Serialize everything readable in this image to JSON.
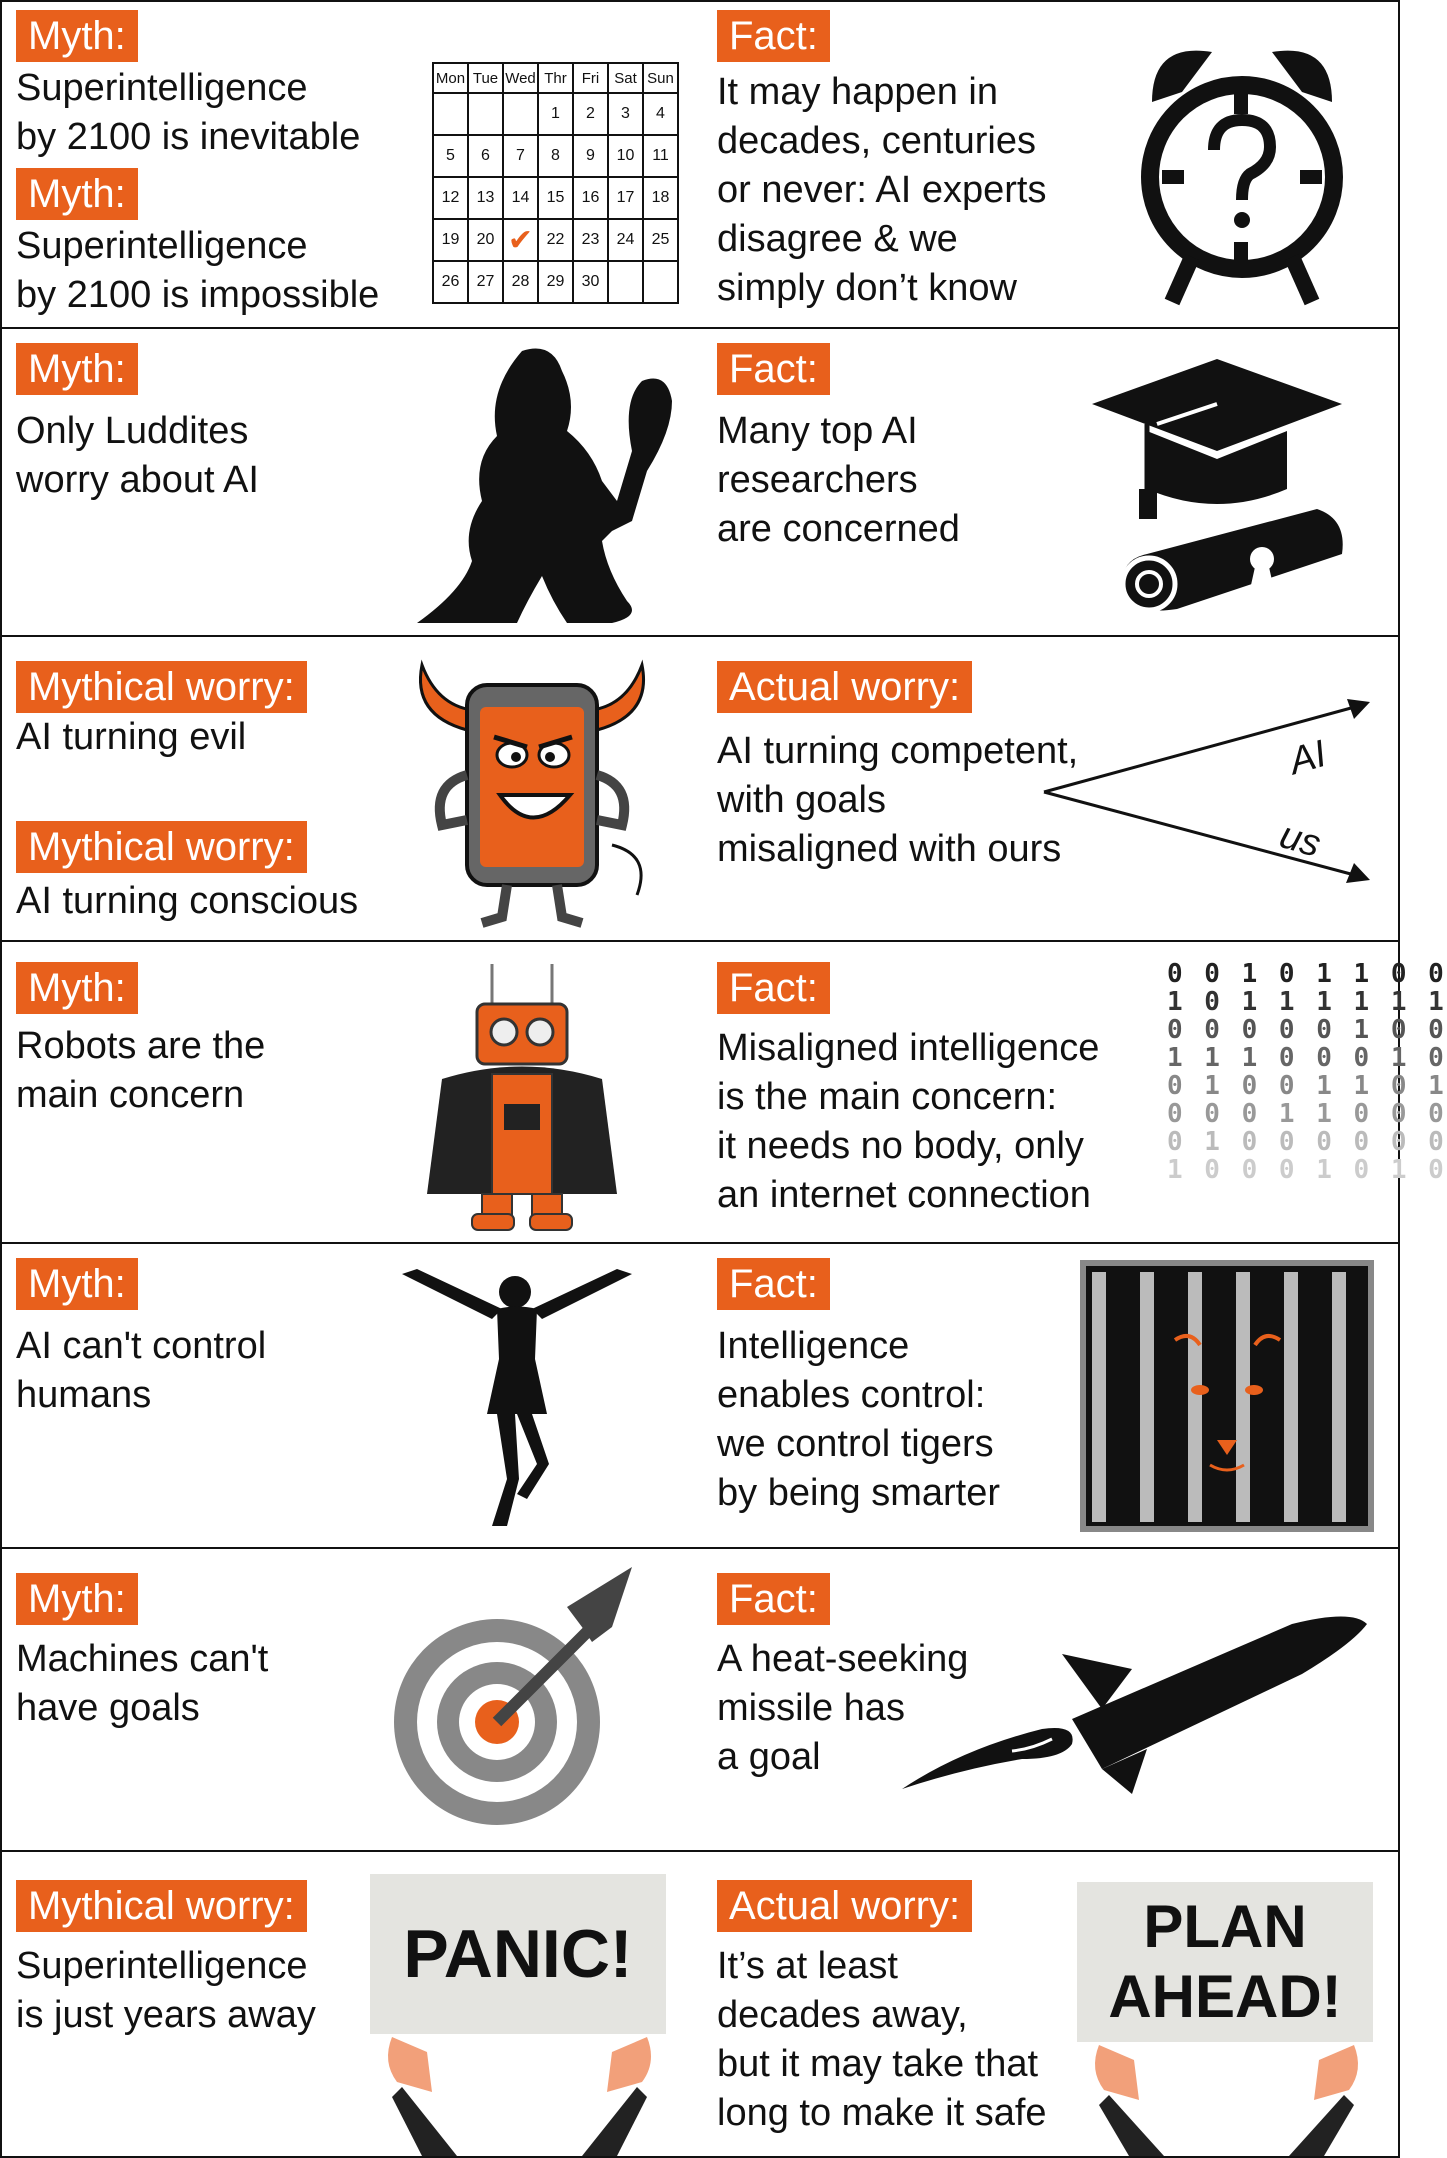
{
  "colors": {
    "accent": "#e8601c",
    "ink": "#111111"
  },
  "rows": [
    {
      "left": [
        {
          "tag": "Myth:",
          "text": "Superintelligence\nby 2100 is inevitable"
        },
        {
          "tag": "Myth:",
          "text": "Superintelligence\n by 2100 is impossible"
        }
      ],
      "left_image": "calendar-icon",
      "right": {
        "tag": "Fact:",
        "text": "It may happen in\ndecades, centuries\nor never: AI experts\ndisagree & we\nsimply don’t know"
      },
      "right_image": "alarm-clock-question-icon"
    },
    {
      "left": [
        {
          "tag": "Myth:",
          "text": "Only Luddites\nworry about AI"
        }
      ],
      "left_image": "caveman-club-silhouette",
      "right": {
        "tag": "Fact:",
        "text": "Many top AI\nresearchers\nare concerned"
      },
      "right_image": "graduation-cap-diploma-icon"
    },
    {
      "left": [
        {
          "tag": "Mythical worry:",
          "text": "AI turning evil"
        },
        {
          "tag": "Mythical worry:",
          "text": "AI turning conscious"
        }
      ],
      "left_image": "devil-smartphone-illustration",
      "right": {
        "tag": "Actual worry:",
        "text": "AI turning competent,\nwith goals\nmisaligned with ours"
      },
      "right_image": "diverging-arrows-diagram",
      "arrow_labels": {
        "upper": "AI",
        "lower": "us"
      }
    },
    {
      "left": [
        {
          "tag": "Myth:",
          "text": "Robots are the\nmain concern"
        }
      ],
      "left_image": "caped-robot-illustration",
      "right": {
        "tag": "Fact:",
        "text": "Misaligned intelligence\nis the main concern:\nit needs no body, only\nan internet connection"
      },
      "right_image": "binary-digits-graphic"
    },
    {
      "left": [
        {
          "tag": "Myth:",
          "text": "AI can't control\nhumans"
        }
      ],
      "left_image": "dancing-woman-silhouette",
      "right": {
        "tag": "Fact:",
        "text": "Intelligence\nenables control:\nwe control tigers\nby being smarter"
      },
      "right_image": "caged-tiger-icon"
    },
    {
      "left": [
        {
          "tag": "Myth:",
          "text": "Machines can't\nhave goals"
        }
      ],
      "left_image": "dart-target-icon",
      "right": {
        "tag": "Fact:",
        "text": "A heat-seeking\nmissile has\na goal"
      },
      "right_image": "missile-icon"
    },
    {
      "left": [
        {
          "tag": "Mythical worry:",
          "text": "Superintelligence\nis just years away"
        }
      ],
      "left_sign": "PANIC!",
      "right": {
        "tag": "Actual worry:",
        "text": "It’s at least\ndecades away,\nbut it may take that\nlong to make it safe"
      },
      "right_sign": "PLAN\nAHEAD!"
    }
  ],
  "calendar": {
    "days": [
      "Mon",
      "Tue",
      "Wed",
      "Thr",
      "Fri",
      "Sat",
      "Sun"
    ],
    "weeks": [
      [
        "",
        "",
        "",
        "1",
        "2",
        "3",
        "4"
      ],
      [
        "5",
        "6",
        "7",
        "8",
        "9",
        "10",
        "11"
      ],
      [
        "12",
        "13",
        "14",
        "15",
        "16",
        "17",
        "18"
      ],
      [
        "19",
        "20",
        "✔",
        "22",
        "23",
        "24",
        "25"
      ],
      [
        "26",
        "27",
        "28",
        "29",
        "30",
        "",
        ""
      ]
    ]
  },
  "binary_rows": [
    "0 0 1 0 1 1 0 0",
    "1 0 1 1 1 1 1 1",
    "0 0 0 0 0 1 0 0",
    "1 1 1 0 0 0 1 0",
    "0 1 0 0 1 1 0 1",
    "0 0 0 1 1 0 0 0",
    "0 1 0 0 0 0 0 0",
    "1 0 0 0 1 0 1 0"
  ]
}
